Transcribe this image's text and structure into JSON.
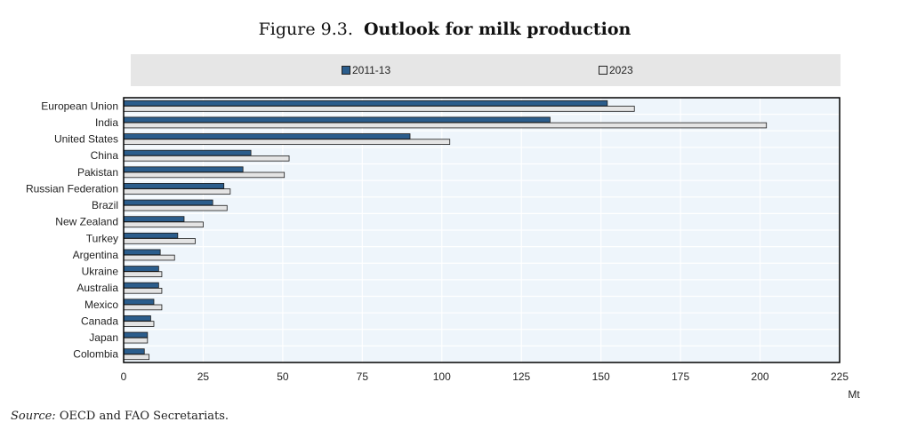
{
  "figure": {
    "number": "Figure 9.3.",
    "title": "Outlook for milk production"
  },
  "source": {
    "label": "Source:",
    "text": "OECD and FAO Secretariats."
  },
  "colors": {
    "series_2011": "#2b5d8c",
    "series_2023": "#e4e4e4",
    "plot_bg": "#eef5fb",
    "legend_bg": "#e6e6e6"
  },
  "chart_data": {
    "type": "bar",
    "orientation": "horizontal",
    "title": "Outlook for milk production",
    "xlabel": "Mt",
    "ylabel": "",
    "xlim": [
      0,
      225
    ],
    "xticks": [
      0,
      25,
      50,
      75,
      100,
      125,
      150,
      175,
      200,
      225
    ],
    "grid": true,
    "legend_position": "top",
    "categories": [
      "European Union",
      "India",
      "United States",
      "China",
      "Pakistan",
      "Russian Federation",
      "Brazil",
      "New Zealand",
      "Turkey",
      "Argentina",
      "Ukraine",
      "Australia",
      "Mexico",
      "Canada",
      "Japan",
      "Colombia"
    ],
    "series": [
      {
        "name": "2011-13",
        "values": [
          152,
          134,
          90,
          40,
          37.5,
          31.5,
          28,
          19,
          17,
          11.5,
          11,
          11,
          9.5,
          8.5,
          7.5,
          6.5
        ]
      },
      {
        "name": "2023",
        "values": [
          160.5,
          202,
          102.5,
          52,
          50.5,
          33.5,
          32.5,
          25,
          22.5,
          16,
          12,
          12,
          12,
          9.5,
          7.5,
          8
        ]
      }
    ]
  }
}
